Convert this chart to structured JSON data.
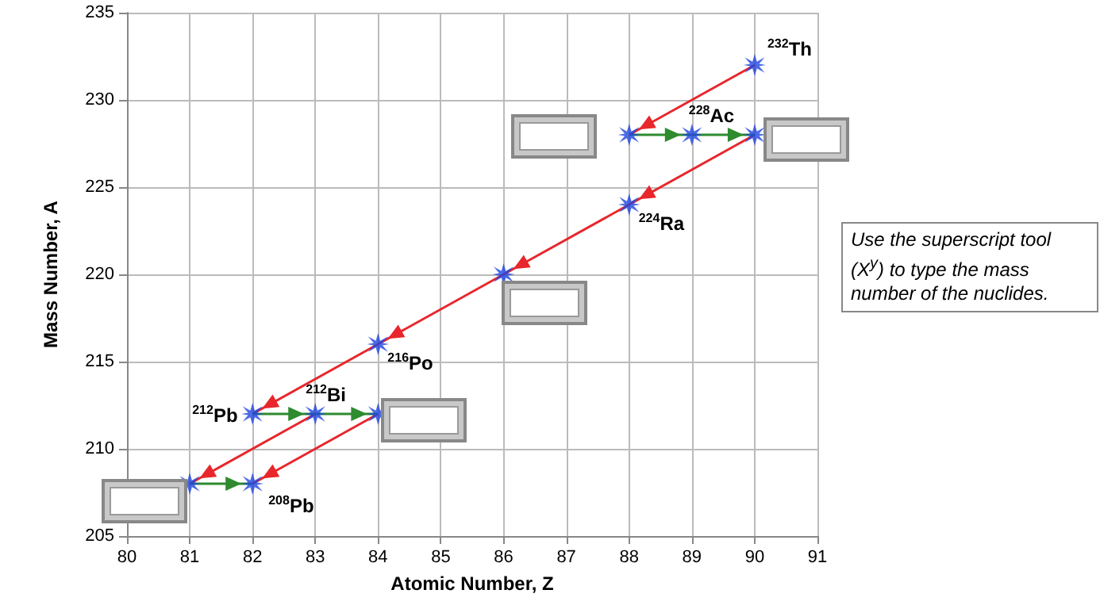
{
  "chart_data": {
    "type": "scatter",
    "xlabel": "Atomic Number, Z",
    "ylabel": "Mass Number, A",
    "xlim": [
      80,
      91
    ],
    "xticks": [
      80,
      81,
      82,
      83,
      84,
      85,
      86,
      87,
      88,
      89,
      90,
      91
    ],
    "ylim": [
      205,
      235
    ],
    "yticks": [
      205,
      210,
      215,
      220,
      225,
      230,
      235
    ],
    "grid": true,
    "marker": "none",
    "series": [
      {
        "type": "line",
        "color": "#e8262b",
        "x": [
          90,
          88
        ],
        "values": [
          232,
          228
        ]
      },
      {
        "type": "line",
        "color": "#e8262b",
        "x": [
          90,
          88
        ],
        "values": [
          228,
          224
        ]
      },
      {
        "type": "line",
        "color": "#e8262b",
        "x": [
          88,
          86
        ],
        "values": [
          224,
          220
        ]
      },
      {
        "type": "line",
        "color": "#e8262b",
        "x": [
          86,
          84
        ],
        "values": [
          220,
          216
        ]
      },
      {
        "type": "line",
        "color": "#e8262b",
        "x": [
          84,
          82
        ],
        "values": [
          216,
          212
        ]
      },
      {
        "type": "line",
        "color": "#e8262b",
        "x": [
          83,
          81
        ],
        "values": [
          212,
          208
        ]
      },
      {
        "type": "line",
        "color": "#e8262b",
        "x": [
          84,
          82
        ],
        "values": [
          212,
          208
        ]
      },
      {
        "type": "line",
        "color": "#2e8b2e",
        "x": [
          88,
          89
        ],
        "values": [
          228,
          228
        ]
      },
      {
        "type": "line",
        "color": "#2e8b2e",
        "x": [
          89,
          90
        ],
        "values": [
          228,
          228
        ]
      },
      {
        "type": "line",
        "color": "#2e8b2e",
        "x": [
          82,
          83
        ],
        "values": [
          212,
          212
        ]
      },
      {
        "type": "line",
        "color": "#2e8b2e",
        "x": [
          83,
          84
        ],
        "values": [
          212,
          212
        ]
      },
      {
        "type": "line",
        "color": "#2e8b2e",
        "x": [
          81,
          82
        ],
        "values": [
          208,
          208
        ]
      },
      {
        "marker": "star",
        "color": "#1f45e0",
        "x": [
          90,
          88,
          89,
          90,
          88,
          86,
          84,
          82,
          83,
          84,
          81,
          82
        ],
        "values": [
          232,
          228,
          228,
          228,
          224,
          220,
          216,
          212,
          212,
          212,
          208,
          208
        ]
      }
    ],
    "annotations": [
      {
        "text": "$^{232}$Th",
        "x": 90,
        "y": 232
      },
      {
        "text": "$^{228}$Ac",
        "x": 89,
        "y": 228
      },
      {
        "text": "$^{224}$Ra",
        "x": 88,
        "y": 224
      },
      {
        "text": "$^{216}$Po",
        "x": 84,
        "y": 216
      },
      {
        "text": "$^{212}$Bi",
        "x": 83,
        "y": 212
      },
      {
        "text": "$^{212}$Pb",
        "x": 82,
        "y": 212
      },
      {
        "text": "$^{208}$Pb",
        "x": 82,
        "y": 208
      },
      "Use the superscript tool (X$^{y}$) to type the mass number of the nuclides."
    ]
  }
}
